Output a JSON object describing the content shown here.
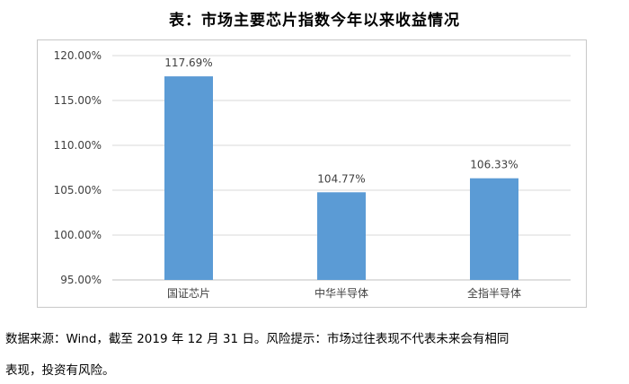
{
  "title": "表：市场主要芯片指数今年以来收益情况",
  "note_line1": "数据来源：Wind，截至 2019 年 12 月 31 日。风险提示：市场过往表现不代表未来会有相同",
  "note_line2": "表现，投资有风险。",
  "colors": {
    "bar": "#5B9BD5",
    "grid": "#d9d9d9",
    "axis": "#bfbfbf"
  },
  "chart_data": {
    "type": "bar",
    "title": "表：市场主要芯片指数今年以来收益情况",
    "xlabel": "",
    "ylabel": "",
    "categories": [
      "国证芯片",
      "中华半导体",
      "全指半导体"
    ],
    "values": [
      117.69,
      104.77,
      106.33
    ],
    "value_labels": [
      "117.69%",
      "104.77%",
      "106.33%"
    ],
    "ylim": [
      95,
      120
    ],
    "yticks": [
      95,
      100,
      105,
      110,
      115,
      120
    ],
    "ytick_labels": [
      "95.00%",
      "100.00%",
      "105.00%",
      "110.00%",
      "115.00%",
      "120.00%"
    ],
    "grid": true,
    "legend": "none"
  }
}
